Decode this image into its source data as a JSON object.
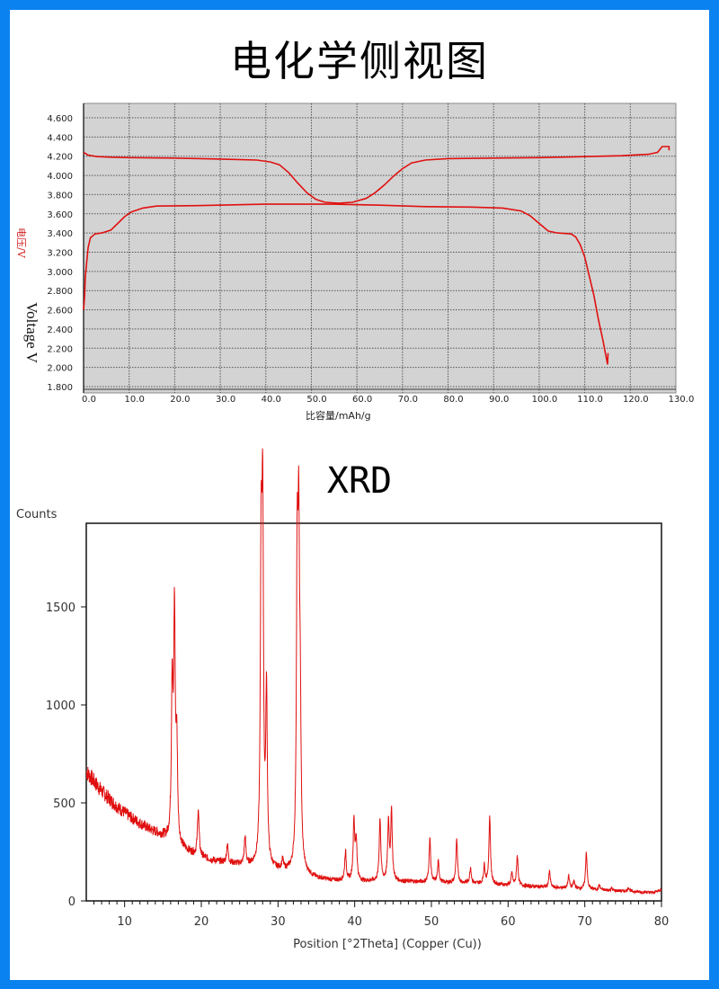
{
  "titles": {
    "echem": "电化学侧视图",
    "xrd": "XRD"
  },
  "colors": {
    "frame": "#0a82f0",
    "curve": "#e01010",
    "plot_bg": "#d3d3d3"
  },
  "chart_data": [
    {
      "type": "line",
      "title": "电化学侧视图",
      "xlabel": "比容量/mAh/g",
      "ylabel": "电压/V",
      "ylabel_overlay": "Voltage V",
      "xlim": [
        0,
        130
      ],
      "ylim": [
        1.8,
        4.7
      ],
      "x_ticks": [
        "0.0",
        "10.0",
        "20.0",
        "30.0",
        "40.0",
        "50.0",
        "60.0",
        "70.0",
        "80.0",
        "90.0",
        "100.0",
        "110.0",
        "120.0",
        "130.0"
      ],
      "y_ticks": [
        "4.600",
        "4.400",
        "4.200",
        "4.000",
        "3.800",
        "3.600",
        "3.400",
        "3.200",
        "3.000",
        "2.800",
        "2.600",
        "2.400",
        "2.200",
        "2.000",
        "1.800"
      ],
      "grid": true,
      "series": [
        {
          "points": [
            [
              0,
              4.24
            ],
            [
              1,
              4.21
            ],
            [
              3,
              4.195
            ],
            [
              6,
              4.19
            ],
            [
              10,
              4.185
            ],
            [
              20,
              4.18
            ],
            [
              30,
              4.17
            ],
            [
              38,
              4.16
            ],
            [
              41,
              4.14
            ],
            [
              43,
              4.11
            ],
            [
              45,
              4.03
            ],
            [
              47,
              3.92
            ],
            [
              49,
              3.82
            ],
            [
              51,
              3.75
            ],
            [
              53,
              3.72
            ],
            [
              56,
              3.71
            ],
            [
              59,
              3.72
            ],
            [
              62,
              3.76
            ],
            [
              64,
              3.82
            ],
            [
              66,
              3.9
            ],
            [
              68,
              3.99
            ],
            [
              70,
              4.07
            ],
            [
              72,
              4.13
            ],
            [
              75,
              4.16
            ],
            [
              80,
              4.175
            ],
            [
              90,
              4.18
            ],
            [
              100,
              4.185
            ],
            [
              110,
              4.195
            ],
            [
              118,
              4.205
            ],
            [
              124,
              4.22
            ],
            [
              126,
              4.24
            ],
            [
              127,
              4.3
            ],
            [
              128.5,
              4.3
            ],
            [
              128.5,
              4.26
            ]
          ]
        },
        {
          "points": [
            [
              0,
              2.6
            ],
            [
              0.2,
              2.72
            ],
            [
              0.4,
              2.95
            ],
            [
              0.7,
              3.1
            ],
            [
              1,
              3.25
            ],
            [
              1.5,
              3.35
            ],
            [
              2.5,
              3.39
            ],
            [
              4,
              3.4
            ],
            [
              6,
              3.43
            ],
            [
              7.5,
              3.5
            ],
            [
              9,
              3.57
            ],
            [
              10.5,
              3.62
            ],
            [
              13,
              3.66
            ],
            [
              16,
              3.68
            ],
            [
              25,
              3.685
            ],
            [
              40,
              3.7
            ],
            [
              55,
              3.7
            ],
            [
              65,
              3.69
            ],
            [
              75,
              3.675
            ],
            [
              85,
              3.67
            ],
            [
              92,
              3.66
            ],
            [
              96,
              3.63
            ],
            [
              98,
              3.58
            ],
            [
              100,
              3.5
            ],
            [
              102,
              3.42
            ],
            [
              104,
              3.4
            ],
            [
              107,
              3.39
            ],
            [
              108,
              3.36
            ],
            [
              109,
              3.28
            ],
            [
              110,
              3.15
            ],
            [
              111,
              2.95
            ],
            [
              112,
              2.75
            ],
            [
              113,
              2.5
            ],
            [
              114,
              2.28
            ],
            [
              115,
              2.03
            ],
            [
              115.1,
              2.15
            ]
          ]
        }
      ]
    },
    {
      "type": "line",
      "title": "XRD",
      "xlabel": "Position [°2Theta] (Copper (Cu))",
      "ylabel": "Counts",
      "xlim": [
        5,
        80
      ],
      "ylim": [
        0,
        1900
      ],
      "x_ticks": [
        "10",
        "20",
        "30",
        "40",
        "50",
        "60",
        "70",
        "80"
      ],
      "y_ticks": [
        "0",
        "500",
        "1000",
        "1500"
      ],
      "grid": false,
      "background": [
        [
          5,
          660
        ],
        [
          7,
          560
        ],
        [
          9,
          480
        ],
        [
          11,
          420
        ],
        [
          13,
          370
        ],
        [
          15,
          330
        ],
        [
          17,
          275
        ],
        [
          19,
          240
        ],
        [
          21,
          210
        ],
        [
          23,
          195
        ],
        [
          26,
          180
        ],
        [
          29,
          160
        ],
        [
          31,
          150
        ],
        [
          33,
          140
        ],
        [
          35,
          115
        ],
        [
          37,
          105
        ],
        [
          40,
          100
        ],
        [
          45,
          100
        ],
        [
          50,
          95
        ],
        [
          55,
          90
        ],
        [
          60,
          80
        ],
        [
          65,
          70
        ],
        [
          70,
          60
        ],
        [
          75,
          50
        ],
        [
          79,
          42
        ],
        [
          80,
          60
        ]
      ],
      "peaks": [
        [
          16.2,
          1080
        ],
        [
          16.5,
          1420
        ],
        [
          16.8,
          760
        ],
        [
          19.6,
          470
        ],
        [
          23.4,
          290
        ],
        [
          25.7,
          320
        ],
        [
          27.8,
          1650
        ],
        [
          28.0,
          1860
        ],
        [
          28.5,
          1030
        ],
        [
          30.6,
          200
        ],
        [
          32.5,
          1600
        ],
        [
          32.7,
          1630
        ],
        [
          32.9,
          840
        ],
        [
          38.8,
          250
        ],
        [
          39.9,
          410
        ],
        [
          40.2,
          300
        ],
        [
          43.3,
          420
        ],
        [
          44.4,
          400
        ],
        [
          44.8,
          450
        ],
        [
          49.8,
          320
        ],
        [
          50.9,
          200
        ],
        [
          53.3,
          310
        ],
        [
          55.1,
          170
        ],
        [
          56.9,
          180
        ],
        [
          57.6,
          430
        ],
        [
          60.5,
          140
        ],
        [
          61.2,
          230
        ],
        [
          65.4,
          150
        ],
        [
          67.9,
          130
        ],
        [
          68.6,
          100
        ],
        [
          70.2,
          250
        ],
        [
          71.9,
          80
        ],
        [
          73.5,
          65
        ],
        [
          75.7,
          70
        ]
      ]
    }
  ]
}
